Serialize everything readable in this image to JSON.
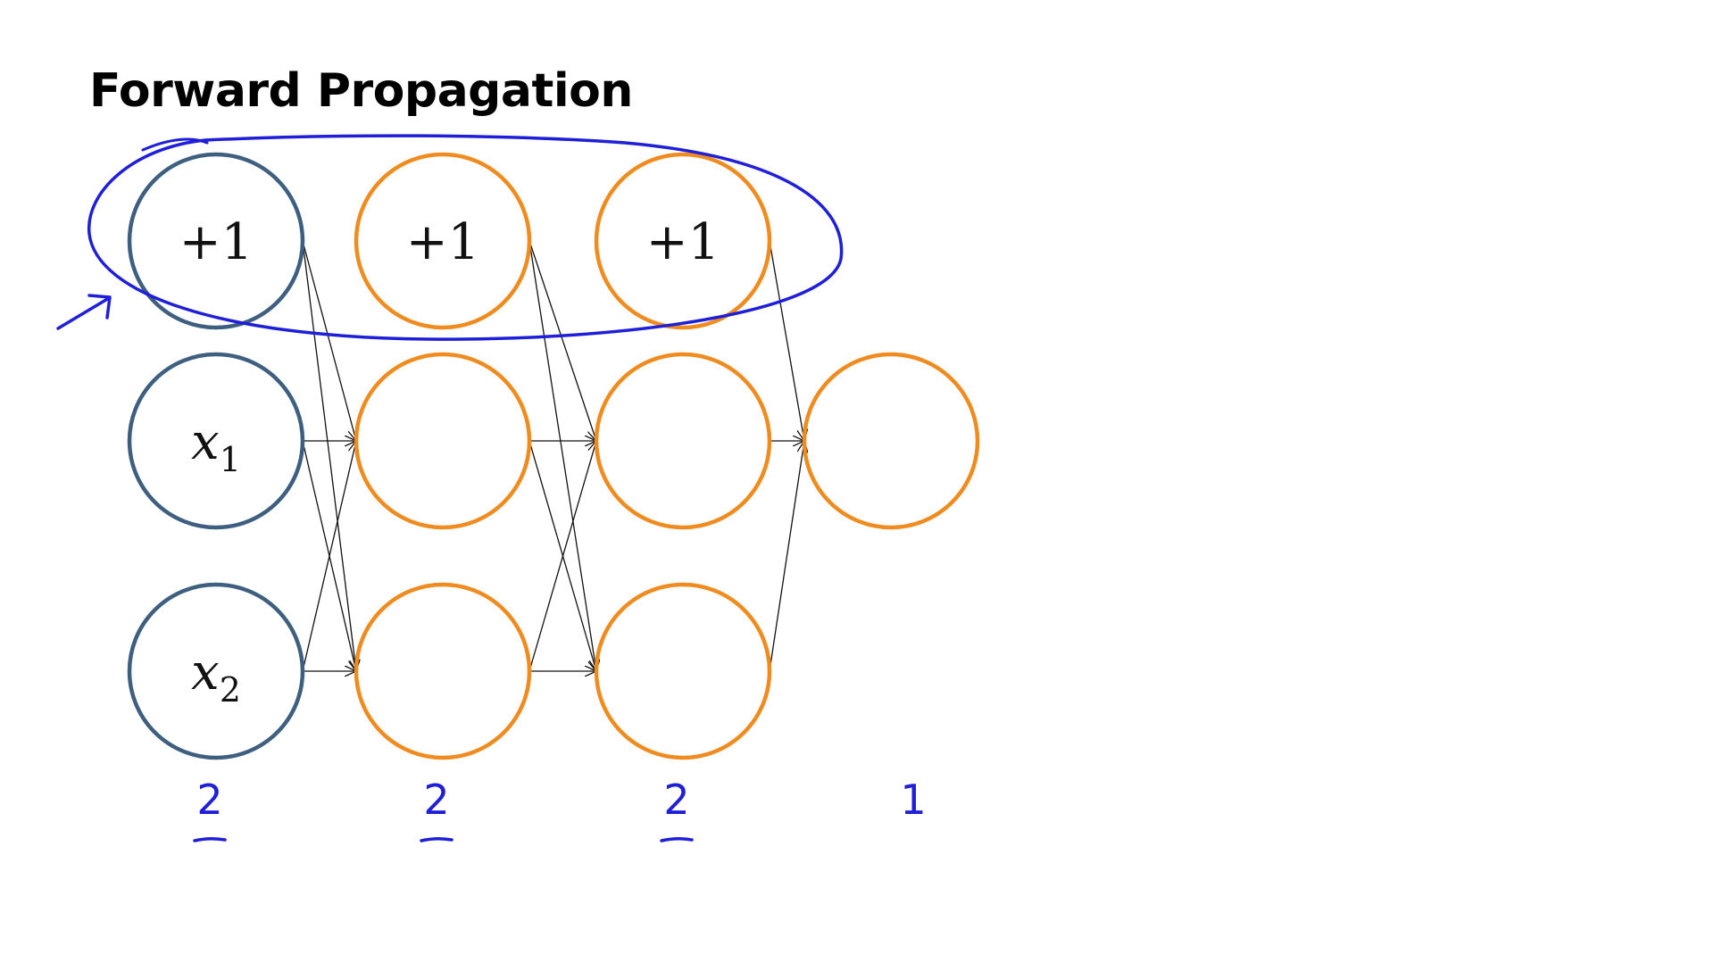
{
  "title": "Forward Propagation",
  "colors": {
    "input_node": "#3f5f80",
    "layer_node": "#ef8b1f",
    "annotation": "#1f1fd9",
    "edge": "#111111"
  },
  "layers": [
    {
      "role": "input",
      "color_key": "input_node",
      "unit_count_annotation": "2",
      "nodes": [
        {
          "id": "in-bias",
          "label": "+1",
          "is_bias": true
        },
        {
          "id": "in-x1",
          "label": "x",
          "subscript": "1",
          "is_bias": false
        },
        {
          "id": "in-x2",
          "label": "x",
          "subscript": "2",
          "is_bias": false
        }
      ]
    },
    {
      "role": "hidden",
      "color_key": "layer_node",
      "unit_count_annotation": "2",
      "nodes": [
        {
          "id": "h1-bias",
          "label": "+1",
          "is_bias": true
        },
        {
          "id": "h1-a1",
          "label": "",
          "is_bias": false
        },
        {
          "id": "h1-a2",
          "label": "",
          "is_bias": false
        }
      ]
    },
    {
      "role": "hidden",
      "color_key": "layer_node",
      "unit_count_annotation": "2",
      "nodes": [
        {
          "id": "h2-bias",
          "label": "+1",
          "is_bias": true
        },
        {
          "id": "h2-a1",
          "label": "",
          "is_bias": false
        },
        {
          "id": "h2-a2",
          "label": "",
          "is_bias": false
        }
      ]
    },
    {
      "role": "output",
      "color_key": "layer_node",
      "unit_count_annotation": "1",
      "nodes": [
        {
          "id": "out-1",
          "label": "",
          "is_bias": false
        }
      ]
    }
  ],
  "connections": "fully-connected to each next layer's non-bias units",
  "annotations": {
    "bias_row_circled": true,
    "arrow_points_to": "in-bias"
  }
}
